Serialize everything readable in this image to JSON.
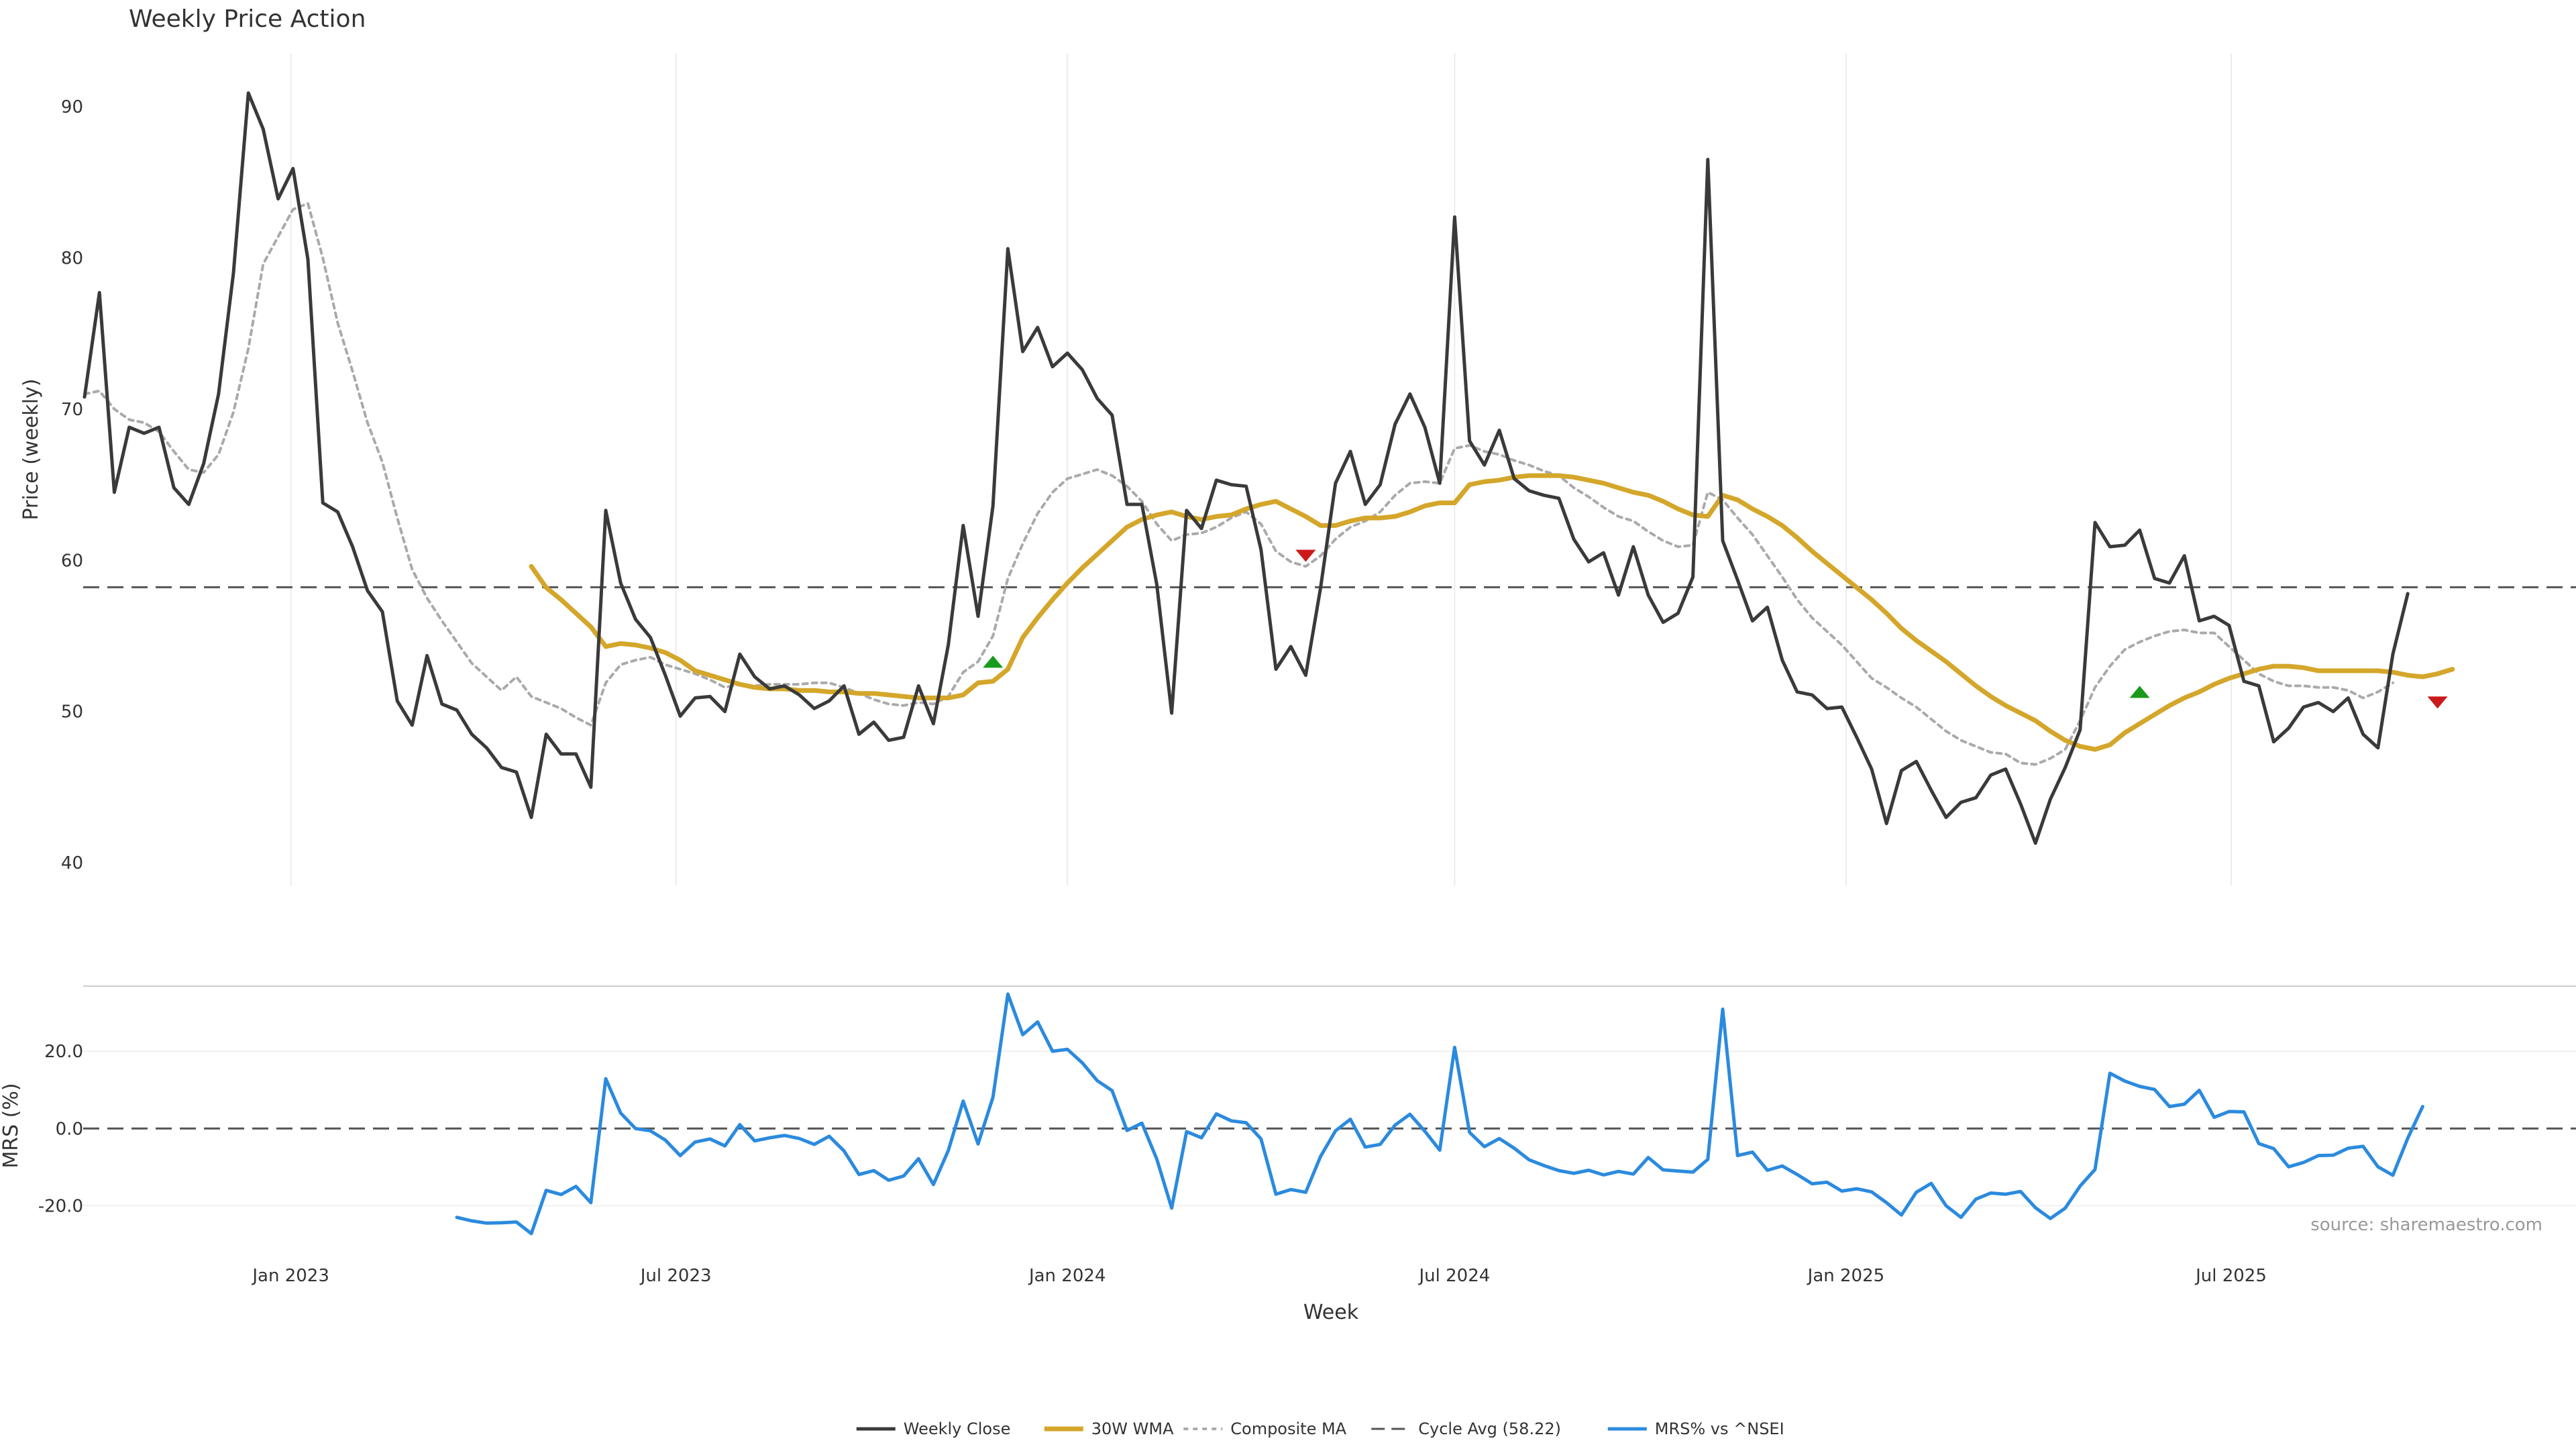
{
  "chart_data": {
    "type": "line",
    "title": "Weekly Price Action",
    "source": "source: sharemaestro.com",
    "xlabel": "Week",
    "x_ticks": [
      "Jan 2023",
      "Jul 2023",
      "Jan 2024",
      "Jul 2024",
      "Jan 2025",
      "Jul 2025"
    ],
    "grid": "vertical",
    "legend_position": "bottom-center",
    "x_start": "2022-09-26",
    "price_panel": {
      "ylabel": "Price (weekly)",
      "ylim": [
        38.5,
        93.5
      ],
      "y_ticks": [
        "40",
        "50",
        "60",
        "70",
        "80",
        "90"
      ],
      "reference_line": {
        "name": "Cycle Avg (58.22)",
        "value": 58.22,
        "color": "#555555"
      },
      "series": [
        {
          "name": "Weekly Close",
          "color": "#3a3a3a",
          "start_week": 0,
          "values": [
            70.8,
            77.7,
            64.5,
            68.8,
            68.4,
            68.8,
            64.8,
            63.7,
            66.4,
            71.0,
            79.0,
            90.9,
            88.5,
            83.9,
            85.9,
            79.9,
            63.8,
            63.2,
            60.9,
            58.0,
            56.6,
            50.7,
            49.1,
            53.7,
            50.5,
            50.1,
            48.5,
            47.6,
            46.3,
            46.0,
            43.0,
            48.5,
            47.2,
            47.2,
            45.0,
            63.3,
            58.5,
            56.1,
            54.9,
            52.4,
            49.7,
            50.9,
            51.0,
            50.0,
            53.8,
            52.3,
            51.5,
            51.7,
            51.1,
            50.2,
            50.7,
            51.7,
            48.5,
            49.3,
            48.1,
            48.3,
            51.7,
            49.2,
            54.4,
            62.3,
            56.3,
            63.6,
            80.6,
            73.8,
            75.4,
            72.8,
            73.7,
            72.6,
            70.7,
            69.6,
            63.7,
            63.7,
            58.4,
            49.9,
            63.3,
            62.1,
            65.3,
            65.0,
            64.9,
            60.7,
            52.8,
            54.3,
            52.4,
            58.2,
            65.1,
            67.2,
            63.7,
            65.0,
            69.0,
            71.0,
            68.8,
            65.1,
            82.7,
            67.9,
            66.3,
            68.6,
            65.4,
            64.6,
            64.3,
            64.1,
            61.4,
            59.9,
            60.5,
            57.7,
            60.9,
            57.7,
            55.9,
            56.5,
            58.9,
            86.5,
            61.3,
            58.7,
            56.0,
            56.9,
            53.4,
            51.3,
            51.1,
            50.2,
            50.3,
            48.3,
            46.2,
            42.6,
            46.1,
            46.7,
            44.8,
            43.0,
            44.0,
            44.3,
            45.8,
            46.2,
            43.9,
            41.3,
            44.2,
            46.3,
            48.8,
            62.5,
            60.9,
            61.0,
            62.0,
            58.8,
            58.5,
            60.3,
            56.0,
            56.3,
            55.7,
            52.0,
            51.7,
            48.0,
            48.9,
            50.3,
            50.6,
            50.0,
            50.9,
            48.5,
            47.6,
            53.8,
            57.8
          ]
        },
        {
          "name": "30W WMA",
          "color": "#d4a62a",
          "start_week": 30,
          "values": [
            59.6,
            58.2,
            57.4,
            56.5,
            55.6,
            54.3,
            54.5,
            54.4,
            54.2,
            53.9,
            53.4,
            52.7,
            52.4,
            52.1,
            51.8,
            51.6,
            51.5,
            51.5,
            51.4,
            51.4,
            51.3,
            51.3,
            51.2,
            51.2,
            51.1,
            51.0,
            50.9,
            50.9,
            50.9,
            51.1,
            51.9,
            52.0,
            52.8,
            54.9,
            56.2,
            57.4,
            58.5,
            59.5,
            60.4,
            61.3,
            62.2,
            62.7,
            63.0,
            63.2,
            62.9,
            62.7,
            62.9,
            63.0,
            63.4,
            63.7,
            63.9,
            63.4,
            62.9,
            62.3,
            62.3,
            62.6,
            62.8,
            62.8,
            62.9,
            63.2,
            63.6,
            63.8,
            63.8,
            65.0,
            65.2,
            65.3,
            65.5,
            65.6,
            65.6,
            65.6,
            65.5,
            65.3,
            65.1,
            64.8,
            64.5,
            64.3,
            63.9,
            63.4,
            63.0,
            62.9,
            64.3,
            64.0,
            63.4,
            62.9,
            62.3,
            61.5,
            60.6,
            59.8,
            59.0,
            58.2,
            57.4,
            56.5,
            55.5,
            54.7,
            54.0,
            53.3,
            52.5,
            51.7,
            51.0,
            50.4,
            49.9,
            49.4,
            48.7,
            48.1,
            47.7,
            47.5,
            47.8,
            48.6,
            49.2,
            49.8,
            50.4,
            50.9,
            51.3,
            51.8,
            52.2,
            52.5,
            52.8,
            53.0,
            53.0,
            52.9,
            52.7,
            52.7,
            52.7,
            52.7,
            52.7,
            52.6,
            52.4,
            52.3,
            52.5,
            52.8
          ]
        },
        {
          "name": "Composite MA",
          "color": "#aaaaaa",
          "start_week": 0,
          "values": [
            71.0,
            71.2,
            70.0,
            69.3,
            69.1,
            68.5,
            67.2,
            66.0,
            65.8,
            67.0,
            69.8,
            74.0,
            79.6,
            81.4,
            83.2,
            83.6,
            80.0,
            75.7,
            72.5,
            69.1,
            66.5,
            62.8,
            59.4,
            57.5,
            56.0,
            54.6,
            53.2,
            52.3,
            51.4,
            52.3,
            51.0,
            50.6,
            50.2,
            49.6,
            49.1,
            51.9,
            53.1,
            53.4,
            53.6,
            53.1,
            52.8,
            52.5,
            52.1,
            51.6,
            51.8,
            51.7,
            51.8,
            51.8,
            51.8,
            51.9,
            51.9,
            51.6,
            51.2,
            50.8,
            50.5,
            50.4,
            50.6,
            50.5,
            51.0,
            52.6,
            53.3,
            55.0,
            58.8,
            61.1,
            63.1,
            64.5,
            65.4,
            65.7,
            66.0,
            65.6,
            64.9,
            63.9,
            62.4,
            61.3,
            61.7,
            61.8,
            62.2,
            62.8,
            63.2,
            62.4,
            60.6,
            59.9,
            59.6,
            60.3,
            61.4,
            62.2,
            62.6,
            63.2,
            64.3,
            65.1,
            65.2,
            65.1,
            67.4,
            67.6,
            67.2,
            67.0,
            66.6,
            66.3,
            65.9,
            65.6,
            64.8,
            64.2,
            63.5,
            62.9,
            62.6,
            61.9,
            61.3,
            60.9,
            61.0,
            64.5,
            64.0,
            62.8,
            61.7,
            60.3,
            58.9,
            57.4,
            56.2,
            55.3,
            54.4,
            53.3,
            52.2,
            51.6,
            50.9,
            50.3,
            49.5,
            48.7,
            48.1,
            47.7,
            47.3,
            47.2,
            46.6,
            46.5,
            46.9,
            47.5,
            49.4,
            51.6,
            53.0,
            54.1,
            54.6,
            55.0,
            55.3,
            55.4,
            55.2,
            55.2,
            54.3,
            53.4,
            52.5,
            52.0,
            51.7,
            51.7,
            51.6,
            51.6,
            51.4,
            50.9,
            51.3,
            51.9
          ]
        }
      ],
      "markers": [
        {
          "type": "buy",
          "week": 61,
          "value": 53.3,
          "color": "#1a9a1a"
        },
        {
          "type": "sell",
          "week": 82,
          "value": 60.3,
          "color": "#cc1a1a"
        },
        {
          "type": "buy",
          "week": 138,
          "value": 51.3,
          "color": "#1a9a1a"
        },
        {
          "type": "sell",
          "week": 158,
          "value": 50.6,
          "color": "#cc1a1a"
        }
      ]
    },
    "mrs_panel": {
      "ylabel": "MRS (%)",
      "ylim": [
        -30,
        36
      ],
      "y_ticks": [
        "-20.0",
        "0.0",
        "20.0"
      ],
      "reference_line": {
        "value": 0,
        "color": "#555555"
      },
      "series": [
        {
          "name": "MRS% vs ^NSEI",
          "color": "#2b8ade",
          "start_week": 25,
          "values": [
            -23.0,
            -23.9,
            -24.5,
            -24.4,
            -24.2,
            -27.2,
            -16.0,
            -17.1,
            -15.0,
            -19.2,
            12.9,
            4.0,
            0.0,
            -0.6,
            -3.0,
            -7.0,
            -3.5,
            -2.7,
            -4.5,
            1.0,
            -3.2,
            -2.4,
            -1.8,
            -2.6,
            -4.1,
            -2.0,
            -5.8,
            -11.9,
            -10.9,
            -13.4,
            -12.3,
            -7.8,
            -14.5,
            -5.7,
            7.1,
            -4.0,
            8.1,
            34.8,
            24.3,
            27.6,
            20.0,
            20.5,
            17.0,
            12.4,
            9.8,
            -0.5,
            1.4,
            -7.9,
            -20.6,
            -0.8,
            -2.4,
            3.8,
            2.0,
            1.5,
            -2.7,
            -17.0,
            -15.8,
            -16.5,
            -7.2,
            -0.6,
            2.4,
            -4.8,
            -4.1,
            0.9,
            3.7,
            -0.7,
            -5.6,
            21.0,
            -1.0,
            -4.7,
            -2.6,
            -5.1,
            -8.1,
            -9.6,
            -10.9,
            -11.6,
            -10.8,
            -12.0,
            -11.1,
            -11.8,
            -7.5,
            -10.7,
            -11.0,
            -11.3,
            -8.0,
            30.9,
            -7.0,
            -6.1,
            -10.8,
            -9.7,
            -11.9,
            -14.3,
            -13.9,
            -16.2,
            -15.6,
            -16.4,
            -19.2,
            -22.4,
            -16.5,
            -14.2,
            -20.0,
            -23.0,
            -18.3,
            -16.7,
            -17.0,
            -16.3,
            -20.5,
            -23.3,
            -20.6,
            -14.9,
            -10.6,
            14.3,
            12.3,
            10.9,
            10.1,
            5.7,
            6.3,
            9.9,
            2.9,
            4.4,
            4.3,
            -3.9,
            -5.2,
            -9.9,
            -8.8,
            -7.0,
            -6.9,
            -5.1,
            -4.6,
            -9.9,
            -12.1,
            -2.5,
            5.7
          ]
        }
      ]
    }
  }
}
